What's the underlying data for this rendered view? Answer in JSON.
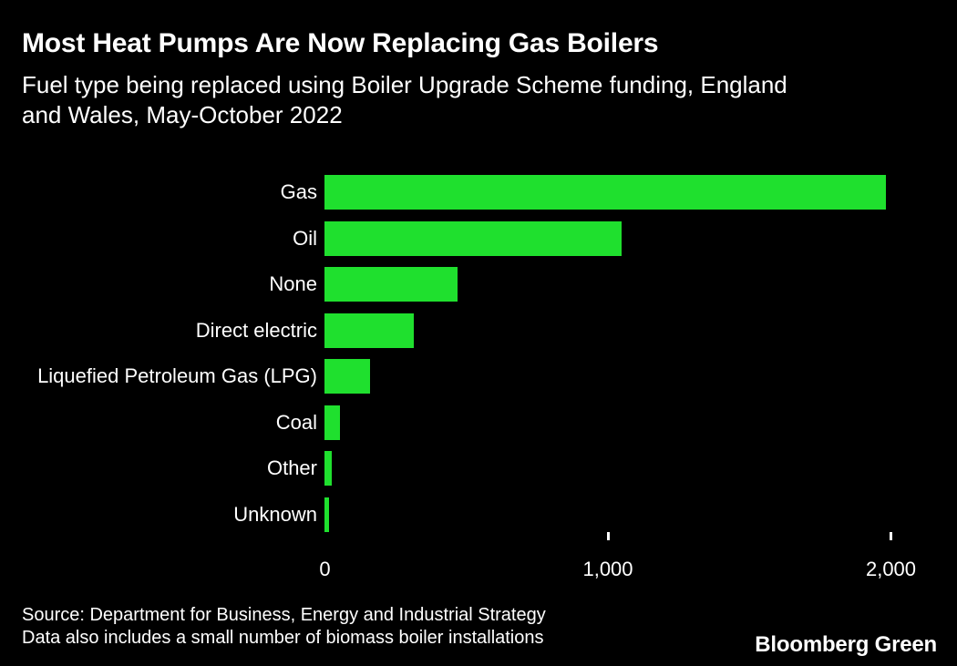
{
  "header": {
    "title": "Most Heat Pumps Are Now Replacing Gas Boilers",
    "subtitle_lines": [
      "Fuel type being replaced using Boiler Upgrade Scheme funding, England",
      "and Wales, May-October 2022"
    ]
  },
  "chart_data": {
    "type": "bar",
    "orientation": "horizontal",
    "title": "Most Heat Pumps Are Now Replacing Gas Boilers",
    "subtitle": "Fuel type being replaced using Boiler Upgrade Scheme funding, England and Wales, May-October 2022",
    "categories": [
      "Gas",
      "Oil",
      "None",
      "Direct electric",
      "Liquefied Petroleum Gas (LPG)",
      "Coal",
      "Other",
      "Unknown"
    ],
    "values": [
      1985,
      1050,
      470,
      315,
      160,
      55,
      25,
      15
    ],
    "xlabel": "",
    "ylabel": "",
    "xlim": [
      0,
      2230
    ],
    "x_ticks": [
      {
        "value": 0,
        "label": "0"
      },
      {
        "value": 1000,
        "label": "1,000"
      },
      {
        "value": 2000,
        "label": "2,000"
      }
    ],
    "tick_marks_at": [
      1000,
      2000
    ],
    "grid": false,
    "legend_position": "none",
    "bar_color": "#1fe02e",
    "background_color": "#000000",
    "text_color": "#ffffff"
  },
  "footer": {
    "source": "Source: Department for Business, Energy and Industrial Strategy",
    "note": "Data also includes a small number of biomass boiler installations",
    "brand": "Bloomberg Green"
  }
}
